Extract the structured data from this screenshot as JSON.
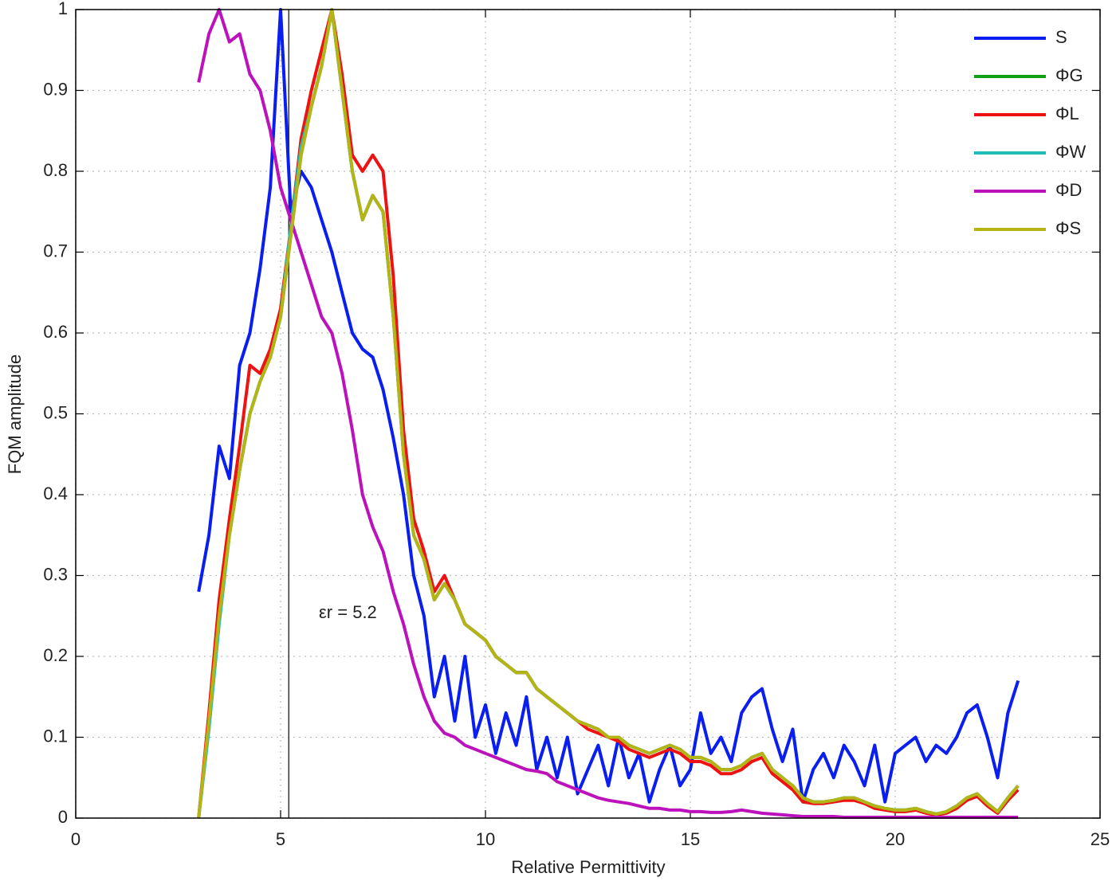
{
  "chart_data": {
    "type": "line",
    "xlabel": "Relative Permittivity",
    "ylabel": "FQM amplitude",
    "xlim": [
      0,
      25
    ],
    "xticks": [
      0,
      5,
      10,
      15,
      20,
      25
    ],
    "ylim": [
      0,
      1
    ],
    "yticks": [
      0,
      0.1,
      0.2,
      0.3,
      0.4,
      0.5,
      0.6,
      0.7,
      0.8,
      0.9,
      1
    ],
    "grid": true,
    "legend": "upper right",
    "annotations": [
      {
        "text": "εr = 5.2",
        "x": 5.2
      }
    ],
    "x": [
      3,
      3.25,
      3.5,
      3.75,
      4,
      4.25,
      4.5,
      4.75,
      5,
      5.25,
      5.5,
      5.75,
      6,
      6.25,
      6.5,
      6.75,
      7,
      7.25,
      7.5,
      7.75,
      8,
      8.25,
      8.5,
      8.75,
      9,
      9.25,
      9.5,
      9.75,
      10,
      10.25,
      10.5,
      10.75,
      11,
      11.25,
      11.5,
      11.75,
      12,
      12.25,
      12.5,
      12.75,
      13,
      13.25,
      13.5,
      13.75,
      14,
      14.25,
      14.5,
      14.75,
      15,
      15.25,
      15.5,
      15.75,
      16,
      16.25,
      16.5,
      16.75,
      17,
      17.25,
      17.5,
      17.75,
      18,
      18.25,
      18.5,
      18.75,
      19,
      19.25,
      19.5,
      19.75,
      20,
      20.25,
      20.5,
      20.75,
      21,
      21.25,
      21.5,
      21.75,
      22,
      22.25,
      22.5,
      22.75,
      23
    ],
    "series": [
      {
        "name": "S",
        "color": "#0a1ef0",
        "values": [
          0.28,
          0.35,
          0.46,
          0.42,
          0.56,
          0.6,
          0.68,
          0.78,
          1.0,
          0.75,
          0.8,
          0.78,
          0.74,
          0.7,
          0.65,
          0.6,
          0.58,
          0.57,
          0.53,
          0.47,
          0.4,
          0.3,
          0.25,
          0.15,
          0.2,
          0.12,
          0.2,
          0.1,
          0.14,
          0.08,
          0.13,
          0.09,
          0.15,
          0.06,
          0.1,
          0.05,
          0.1,
          0.03,
          0.06,
          0.09,
          0.04,
          0.1,
          0.05,
          0.08,
          0.02,
          0.06,
          0.09,
          0.04,
          0.06,
          0.13,
          0.08,
          0.1,
          0.07,
          0.13,
          0.15,
          0.16,
          0.11,
          0.07,
          0.11,
          0.02,
          0.06,
          0.08,
          0.05,
          0.09,
          0.07,
          0.04,
          0.09,
          0.02,
          0.08,
          0.09,
          0.1,
          0.07,
          0.09,
          0.08,
          0.1,
          0.13,
          0.14,
          0.1,
          0.05,
          0.13,
          0.17
        ]
      },
      {
        "name": "ΦG",
        "color": "#12a012",
        "values": [
          0,
          0.12,
          0.25,
          0.35,
          0.43,
          0.5,
          0.54,
          0.57,
          0.62,
          0.72,
          0.82,
          0.88,
          0.93,
          1.0,
          0.9,
          0.8,
          0.74,
          0.77,
          0.75,
          0.62,
          0.45,
          0.35,
          0.32,
          0.27,
          0.29,
          0.27,
          0.24,
          0.23,
          0.22,
          0.2,
          0.19,
          0.18,
          0.18,
          0.16,
          0.15,
          0.14,
          0.13,
          0.12,
          0.115,
          0.11,
          0.1,
          0.1,
          0.09,
          0.085,
          0.08,
          0.085,
          0.09,
          0.085,
          0.075,
          0.075,
          0.07,
          0.06,
          0.06,
          0.065,
          0.075,
          0.08,
          0.06,
          0.05,
          0.04,
          0.025,
          0.02,
          0.02,
          0.022,
          0.025,
          0.025,
          0.02,
          0.015,
          0.012,
          0.01,
          0.01,
          0.012,
          0.008,
          0.005,
          0.008,
          0.015,
          0.025,
          0.03,
          0.018,
          0.008,
          0.025,
          0.04
        ]
      },
      {
        "name": "ΦL",
        "color": "#ee1212",
        "values": [
          0,
          0.13,
          0.27,
          0.37,
          0.46,
          0.56,
          0.55,
          0.58,
          0.63,
          0.73,
          0.84,
          0.9,
          0.95,
          1.0,
          0.92,
          0.82,
          0.8,
          0.82,
          0.8,
          0.67,
          0.48,
          0.37,
          0.33,
          0.28,
          0.3,
          0.27,
          0.24,
          0.23,
          0.22,
          0.2,
          0.19,
          0.18,
          0.18,
          0.16,
          0.15,
          0.14,
          0.13,
          0.12,
          0.11,
          0.105,
          0.1,
          0.095,
          0.085,
          0.08,
          0.075,
          0.08,
          0.085,
          0.08,
          0.07,
          0.07,
          0.065,
          0.055,
          0.055,
          0.06,
          0.07,
          0.075,
          0.055,
          0.045,
          0.035,
          0.02,
          0.018,
          0.018,
          0.02,
          0.022,
          0.022,
          0.018,
          0.012,
          0.01,
          0.008,
          0.008,
          0.01,
          0.006,
          0.004,
          0.006,
          0.012,
          0.022,
          0.027,
          0.015,
          0.006,
          0.022,
          0.035
        ]
      },
      {
        "name": "ΦW",
        "color": "#20bcbc",
        "values": [
          0,
          0.11,
          0.24,
          0.35,
          0.43,
          0.5,
          0.54,
          0.57,
          0.62,
          0.73,
          0.83,
          0.88,
          0.93,
          1.0,
          0.9,
          0.8,
          0.74,
          0.77,
          0.75,
          0.62,
          0.45,
          0.35,
          0.32,
          0.27,
          0.29,
          0.27,
          0.24,
          0.23,
          0.22,
          0.2,
          0.19,
          0.18,
          0.18,
          0.16,
          0.15,
          0.14,
          0.13,
          0.12,
          0.115,
          0.11,
          0.1,
          0.1,
          0.09,
          0.085,
          0.08,
          0.085,
          0.09,
          0.085,
          0.075,
          0.075,
          0.07,
          0.06,
          0.06,
          0.065,
          0.075,
          0.08,
          0.06,
          0.05,
          0.04,
          0.025,
          0.02,
          0.02,
          0.022,
          0.025,
          0.025,
          0.02,
          0.015,
          0.012,
          0.01,
          0.01,
          0.012,
          0.008,
          0.005,
          0.008,
          0.015,
          0.025,
          0.03,
          0.018,
          0.008,
          0.025,
          0.04
        ]
      },
      {
        "name": "ΦD",
        "color": "#bc12bc",
        "values": [
          0.91,
          0.97,
          1.0,
          0.96,
          0.97,
          0.92,
          0.9,
          0.85,
          0.78,
          0.74,
          0.7,
          0.66,
          0.62,
          0.6,
          0.55,
          0.48,
          0.4,
          0.36,
          0.33,
          0.28,
          0.24,
          0.19,
          0.15,
          0.12,
          0.105,
          0.1,
          0.09,
          0.085,
          0.08,
          0.075,
          0.07,
          0.065,
          0.06,
          0.058,
          0.055,
          0.045,
          0.04,
          0.035,
          0.03,
          0.025,
          0.022,
          0.02,
          0.018,
          0.015,
          0.012,
          0.012,
          0.01,
          0.01,
          0.008,
          0.008,
          0.007,
          0.007,
          0.008,
          0.01,
          0.008,
          0.006,
          0.005,
          0.004,
          0.003,
          0.002,
          0.002,
          0.002,
          0.002,
          0.001,
          0.001,
          0.001,
          0.001,
          0.001,
          0.001,
          0.001,
          0.001,
          0.001,
          0.001,
          0.001,
          0.001,
          0.001,
          0.001,
          0.001,
          0.001,
          0.001,
          0.001
        ]
      },
      {
        "name": "ΦS",
        "color": "#b4b414",
        "values": [
          0,
          0.12,
          0.25,
          0.35,
          0.43,
          0.5,
          0.54,
          0.57,
          0.62,
          0.72,
          0.82,
          0.88,
          0.93,
          1.0,
          0.9,
          0.8,
          0.74,
          0.77,
          0.75,
          0.62,
          0.45,
          0.35,
          0.32,
          0.27,
          0.29,
          0.27,
          0.24,
          0.23,
          0.22,
          0.2,
          0.19,
          0.18,
          0.18,
          0.16,
          0.15,
          0.14,
          0.13,
          0.12,
          0.115,
          0.11,
          0.1,
          0.1,
          0.09,
          0.085,
          0.08,
          0.085,
          0.09,
          0.085,
          0.075,
          0.075,
          0.07,
          0.06,
          0.06,
          0.065,
          0.075,
          0.08,
          0.06,
          0.05,
          0.04,
          0.025,
          0.02,
          0.02,
          0.022,
          0.025,
          0.025,
          0.02,
          0.015,
          0.012,
          0.01,
          0.01,
          0.012,
          0.008,
          0.005,
          0.008,
          0.015,
          0.025,
          0.03,
          0.018,
          0.008,
          0.025,
          0.04
        ]
      }
    ]
  }
}
